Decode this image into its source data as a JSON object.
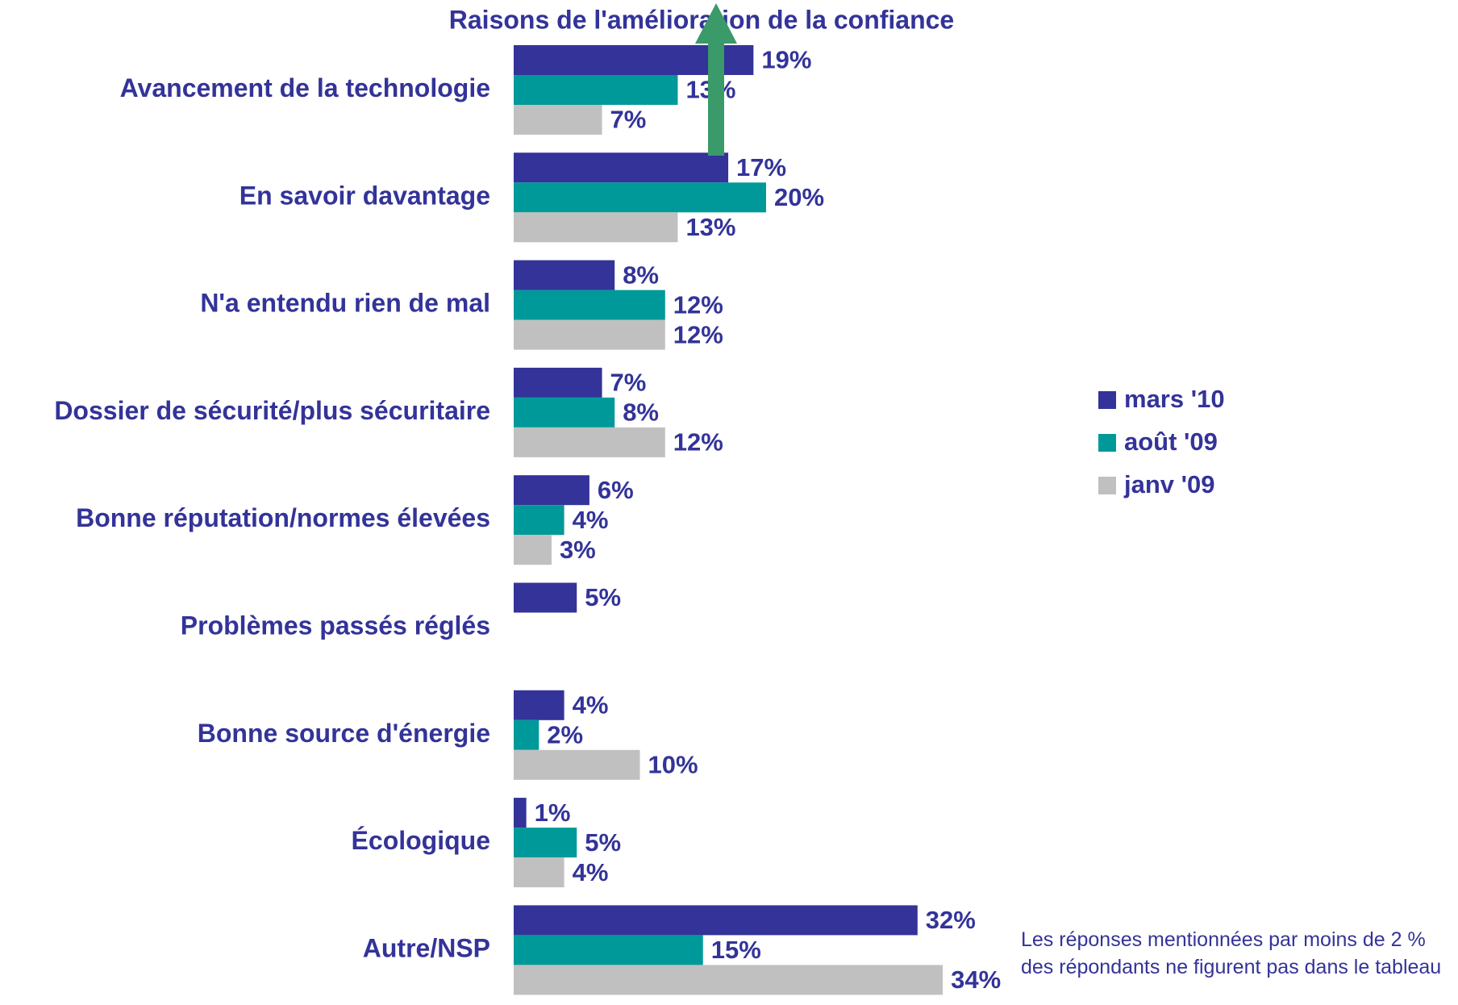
{
  "chart_data": {
    "type": "bar",
    "orientation": "horizontal",
    "title": "Raisons de l'amélioration de la confiance",
    "categories": [
      "Avancement de la technologie",
      "En savoir davantage",
      "N'a entendu rien de mal",
      "Dossier de sécurité/plus sécuritaire",
      "Bonne réputation/normes élevées",
      "Problèmes passés réglés",
      "Bonne source d'énergie",
      "Écologique",
      "Autre/NSP"
    ],
    "series": [
      {
        "name": "mars '10",
        "color": "#333399",
        "values": [
          19,
          17,
          8,
          7,
          6,
          5,
          4,
          1,
          32
        ],
        "value_labels": [
          "19%",
          "17%",
          "8%",
          "7%",
          "6%",
          "5%",
          "4%",
          "1%",
          "32%"
        ]
      },
      {
        "name": "août '09",
        "color": "#009999",
        "values": [
          13,
          20,
          12,
          8,
          4,
          null,
          2,
          5,
          15
        ],
        "value_labels": [
          "13%",
          "20%",
          "12%",
          "8%",
          "4%",
          null,
          "2%",
          "5%",
          "15%"
        ]
      },
      {
        "name": "janv '09",
        "color": "#c0c0c0",
        "values": [
          7,
          13,
          12,
          12,
          3,
          null,
          10,
          4,
          34
        ],
        "value_labels": [
          "7%",
          "13%",
          "12%",
          "12%",
          "3%",
          null,
          "10%",
          "4%",
          "34%"
        ]
      }
    ],
    "legend": "right",
    "note": "Les réponses mentionnées par moins de 2 % des répondants ne figurent pas dans le tableau"
  }
}
